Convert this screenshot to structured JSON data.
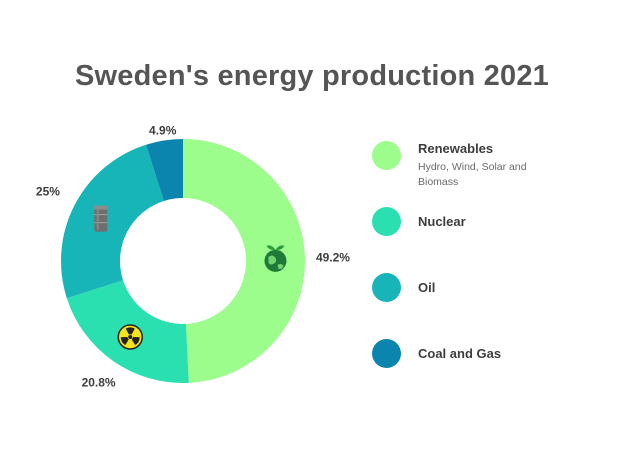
{
  "title": "Sweden's energy production 2021",
  "colors": {
    "renewables": "#9cfc8c",
    "nuclear": "#2adfb0",
    "oil": "#18b5b8",
    "coal_gas": "#0b85ad"
  },
  "chart_data": {
    "type": "pie",
    "title": "Sweden's energy production 2021",
    "donut": true,
    "slices": [
      {
        "name": "Renewables",
        "value": 49.2,
        "label": "49.2%",
        "color": "#9cfc8c",
        "icon": "globe-leaf-icon"
      },
      {
        "name": "Nuclear",
        "value": 20.8,
        "label": "20.8%",
        "color": "#2adfb0",
        "icon": "radiation-icon"
      },
      {
        "name": "Oil",
        "value": 25,
        "label": "25%",
        "color": "#18b5b8",
        "icon": "oil-barrel-icon"
      },
      {
        "name": "Coal and Gas",
        "value": 4.9,
        "label": "4.9%",
        "color": "#0b85ad",
        "icon": ""
      }
    ]
  },
  "legend": [
    {
      "label": "Renewables",
      "sublabel": "Hydro, Wind, Solar and Biomass",
      "color": "#9cfc8c"
    },
    {
      "label": "Nuclear",
      "sublabel": "",
      "color": "#2adfb0"
    },
    {
      "label": "Oil",
      "sublabel": "",
      "color": "#18b5b8"
    },
    {
      "label": "Coal and Gas",
      "sublabel": "",
      "color": "#0b85ad"
    }
  ]
}
